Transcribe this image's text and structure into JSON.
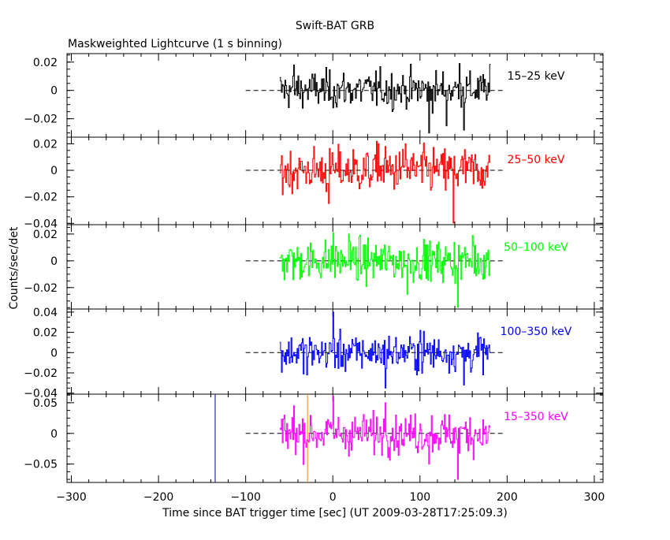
{
  "header": {
    "title": "Swift-BAT GRB",
    "subtitle": "Maskweighted Lightcurve (1 s binning)"
  },
  "axes": {
    "xlabel": "Time since BAT trigger time [sec] (UT 2009-03-28T17:25:09.3)",
    "ylabel": "Counts/sec/det"
  },
  "chart_data": {
    "type": "line",
    "title": "Swift-BAT GRB",
    "subtitle": "Maskweighted Lightcurve (1 s binning)",
    "xlabel": "Time since BAT trigger time [sec] (UT 2009-03-28T17:25:09.3)",
    "ylabel": "Counts/sec/det",
    "xlim": [
      -305,
      310
    ],
    "xticks": [
      -300,
      -200,
      -100,
      0,
      100,
      200,
      300
    ],
    "xtick_labels": [
      "−300",
      "−200",
      "−100",
      "0",
      "100",
      "200",
      "300"
    ],
    "data_range": [
      -61,
      180
    ],
    "baseline_range": [
      -100,
      195
    ],
    "vertical_markers": [
      {
        "x": -135,
        "color": "#000080"
      },
      {
        "x": -29,
        "color": "#ff8000"
      }
    ],
    "panels": [
      {
        "name": "15–25 keV",
        "label": "15–25 keV",
        "color": "#000000",
        "ylim": [
          -0.033,
          0.026
        ],
        "yticks": [
          -0.02,
          0,
          0.02
        ],
        "ytick_labels": [
          "−0.02",
          "0",
          "0.02"
        ],
        "noise_sd": 0.0065,
        "offset": 0.0005,
        "spikes": [
          [
            110,
            -0.03
          ],
          [
            150,
            -0.028
          ],
          [
            -45,
            0.018
          ],
          [
            130,
            -0.025
          ],
          [
            145,
            0.019
          ]
        ]
      },
      {
        "name": "25–50 keV",
        "label": "25–50 keV",
        "color": "#ff0000",
        "ylim": [
          -0.041,
          0.025
        ],
        "yticks": [
          -0.04,
          -0.02,
          0,
          0.02
        ],
        "ytick_labels": [
          "−0.04",
          "−0.02",
          "0",
          "0.02"
        ],
        "noise_sd": 0.0085,
        "offset": 0.0,
        "spikes": [
          [
            138,
            -0.04
          ],
          [
            52,
            0.02
          ],
          [
            83,
            0.02
          ],
          [
            -5,
            -0.025
          ],
          [
            60,
            0.018
          ]
        ]
      },
      {
        "name": "50–100 keV",
        "label": "50–100 keV",
        "color": "#00ff00",
        "ylim": [
          -0.036,
          0.027
        ],
        "yticks": [
          -0.02,
          0,
          0.02
        ],
        "ytick_labels": [
          "−0.02",
          "0",
          "0.02"
        ],
        "noise_sd": 0.0075,
        "offset": 0.0,
        "spikes": [
          [
            143,
            -0.035
          ],
          [
            0,
            0.021
          ],
          [
            18,
            0.02
          ],
          [
            85,
            -0.025
          ],
          [
            160,
            0.019
          ]
        ]
      },
      {
        "name": "100–350 keV",
        "label": "100–350 keV",
        "color": "#0000ff",
        "ylim": [
          -0.041,
          0.043
        ],
        "yticks": [
          -0.04,
          -0.02,
          0,
          0.02,
          0.04
        ],
        "ytick_labels": [
          "−0.04",
          "−0.02",
          "0",
          "0.02",
          "0.04"
        ],
        "noise_sd": 0.009,
        "offset": 0.0,
        "spikes": [
          [
            0,
            0.04
          ],
          [
            60,
            -0.035
          ],
          [
            150,
            -0.032
          ],
          [
            -30,
            -0.022
          ],
          [
            100,
            0.022
          ]
        ]
      },
      {
        "name": "15–350 keV",
        "label": "15–350 keV",
        "color": "#ff00ff",
        "ylim": [
          -0.08,
          0.064
        ],
        "yticks": [
          -0.05,
          0,
          0.05
        ],
        "ytick_labels": [
          "−0.05",
          "0",
          "0.05"
        ],
        "noise_sd": 0.016,
        "offset": 0.0,
        "spikes": [
          [
            0,
            0.062
          ],
          [
            143,
            -0.075
          ],
          [
            60,
            0.05
          ],
          [
            -45,
            0.045
          ],
          [
            110,
            -0.05
          ]
        ]
      }
    ]
  }
}
